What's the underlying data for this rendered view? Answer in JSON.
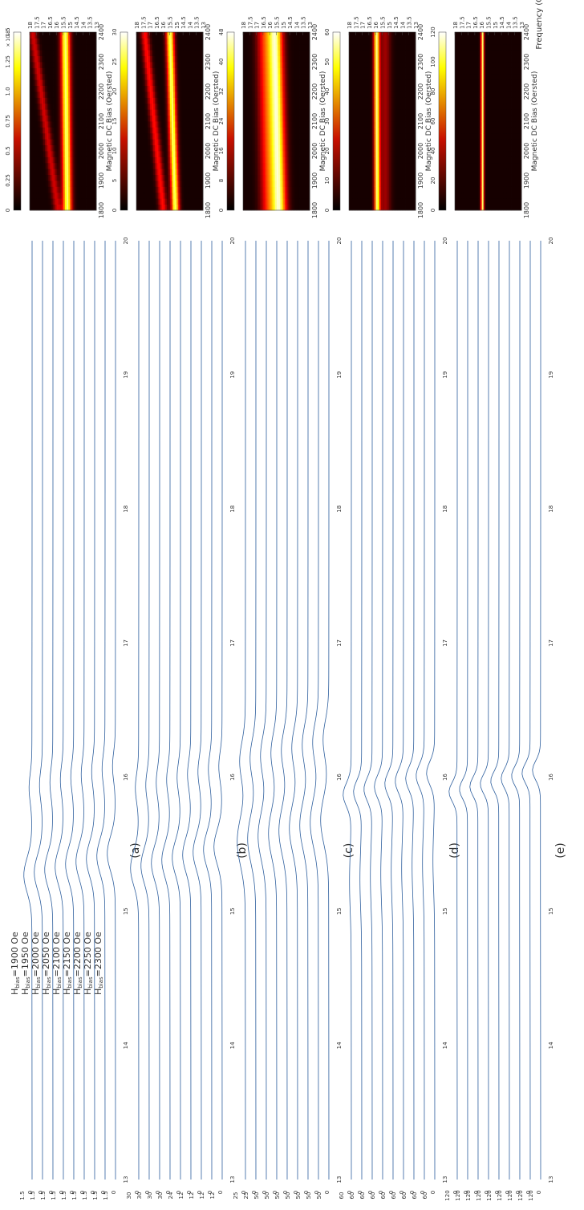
{
  "figure": {
    "frequency_label": "Frequency (GHz)",
    "bias_axis_label": "Magnetic DC Bias (Oersted)",
    "exponent_label": "× 10",
    "exponent_power": "-8"
  },
  "colors": {
    "trace": "#2e5f9e",
    "axis": "#444444",
    "heat_low": "#000000",
    "heat_mid": "#c81000",
    "heat_high": "#ffff00",
    "heat_top": "#ffffff"
  },
  "chart_data": [
    {
      "panel": "(a)",
      "type": "heatmap",
      "x_label": "Magnetic DC Bias (Oersted)",
      "x_ticks": [
        "1800",
        "1900",
        "2000",
        "2100",
        "2200",
        "2300",
        "2400"
      ],
      "y_label": "",
      "y_ticks": [
        "13",
        "13.5",
        "14",
        "14.5",
        "15",
        "15.5",
        "16",
        "16.5",
        "17",
        "17.5",
        "18"
      ],
      "x_range": [
        1800,
        2400
      ],
      "y_range": [
        13,
        18
      ],
      "colorbar_ticks": [
        "1.5",
        "1.25",
        "1.0",
        "0.75",
        "0.5",
        "0.25",
        "0"
      ],
      "colorbar_exponent": "-8",
      "bands": [
        {
          "f_start": 15.2,
          "f_end": 15.35,
          "strength": 1.0,
          "width": 0.35
        },
        {
          "f_start": 15.9,
          "f_end": 17.8,
          "strength": 0.35,
          "width": 0.3
        }
      ]
    },
    {
      "panel": "(b)",
      "type": "heatmap",
      "x_label": "Magnetic DC Bias (Oersted)",
      "x_ticks": [
        "1800",
        "1900",
        "2000",
        "2100",
        "2200",
        "2300",
        "2400"
      ],
      "y_ticks": [
        "13",
        "13.5",
        "14",
        "14.5",
        "15",
        "15.5",
        "16",
        "16.5",
        "17",
        "17.5",
        "18"
      ],
      "x_range": [
        1800,
        2400
      ],
      "y_range": [
        13,
        18
      ],
      "colorbar_ticks": [
        "30",
        "25",
        "20",
        "15",
        "10",
        "5",
        "0"
      ],
      "bands": [
        {
          "f_start": 15.1,
          "f_end": 15.5,
          "strength": 1.0,
          "width": 0.3
        },
        {
          "f_start": 16.0,
          "f_end": 17.4,
          "strength": 0.45,
          "width": 0.3
        }
      ]
    },
    {
      "panel": "(c)",
      "type": "heatmap",
      "x_label": "Magnetic DC Bias (Oersted)",
      "x_ticks": [
        "1800",
        "1900",
        "2000",
        "2100",
        "2200",
        "2300",
        "2400"
      ],
      "y_ticks": [
        "13",
        "13.5",
        "14",
        "14.5",
        "15",
        "15.5",
        "16",
        "16.5",
        "17",
        "17.5",
        "18"
      ],
      "x_range": [
        1800,
        2400
      ],
      "y_range": [
        13,
        18
      ],
      "colorbar_ticks": [
        "48",
        "40",
        "32",
        "24",
        "16",
        "8",
        "0"
      ],
      "bands": [
        {
          "f_start": 15.3,
          "f_end": 15.6,
          "strength": 1.0,
          "width": 0.55
        },
        {
          "f_start": 16.1,
          "f_end": 16.4,
          "strength": 0.5,
          "width": 0.6
        }
      ]
    },
    {
      "panel": "(d)",
      "type": "heatmap",
      "x_label": "Magnetic DC Bias (Oersted)",
      "x_ticks": [
        "1800",
        "1900",
        "2000",
        "2100",
        "2200",
        "2300",
        "2400"
      ],
      "y_ticks": [
        "13",
        "13.5",
        "14",
        "14.5",
        "15",
        "15.5",
        "16",
        "16.5",
        "17",
        "17.5",
        "18"
      ],
      "x_range": [
        1800,
        2400
      ],
      "y_range": [
        13,
        18
      ],
      "colorbar_ticks": [
        "60",
        "50",
        "40",
        "30",
        "20",
        "10",
        "0"
      ],
      "bands": [
        {
          "f_start": 15.9,
          "f_end": 15.95,
          "strength": 1.0,
          "width": 0.22
        },
        {
          "f_start": 15.3,
          "f_end": 15.3,
          "strength": 0.25,
          "width": 0.4
        }
      ]
    },
    {
      "panel": "(e)",
      "type": "heatmap",
      "x_label": "Magnetic DC Bias (Oersted)",
      "x_ticks": [
        "1800",
        "1900",
        "2000",
        "2100",
        "2200",
        "2300",
        "2400"
      ],
      "y_ticks": [
        "13",
        "13.5",
        "14",
        "14.5",
        "15",
        "15.5",
        "16",
        "16.5",
        "17",
        "17.5",
        "18"
      ],
      "x_range": [
        1800,
        2400
      ],
      "y_range": [
        13,
        18
      ],
      "colorbar_ticks": [
        "120",
        "100",
        "80",
        "60",
        "40",
        "20",
        "0"
      ],
      "bands": [
        {
          "f_start": 15.95,
          "f_end": 15.95,
          "strength": 1.0,
          "width": 0.12
        }
      ]
    }
  ],
  "spectra": {
    "type": "line",
    "x_range": [
      13,
      20
    ],
    "x_ticks": [
      "13",
      "14",
      "15",
      "16",
      "17",
      "18",
      "19",
      "20"
    ],
    "bias_labels": [
      {
        "base": "H",
        "sub": "bias",
        "text": "=1900 Oe"
      },
      {
        "base": "H",
        "sub": "bias",
        "text": "=1950 Oe"
      },
      {
        "base": "H",
        "sub": "bias",
        "text": "=2000 Oe"
      },
      {
        "base": "H",
        "sub": "bias",
        "text": "=2050 Oe"
      },
      {
        "base": "H",
        "sub": "bias",
        "text": "=2100 Oe"
      },
      {
        "base": "H",
        "sub": "bias",
        "text": "=2150 Oe"
      },
      {
        "base": "H",
        "sub": "bias",
        "text": "=2200 Oe"
      },
      {
        "base": "H",
        "sub": "bias",
        "text": "=2250 Oe"
      },
      {
        "base": "H",
        "sub": "bias",
        "text": "=2300 Oe"
      }
    ],
    "columns": [
      {
        "panel": "(a)",
        "ymax": [
          "1.5",
          "1.5",
          "1.5",
          "1.5",
          "1.5",
          "1.5",
          "1.5",
          "1.5",
          "1.5"
        ],
        "peaks": [
          [
            15.35,
            1.0,
            0.18
          ],
          [
            16.0,
            0.35,
            0.15
          ]
        ]
      },
      {
        "panel": "(b)",
        "ymax": [
          "30",
          "30",
          "30",
          "30",
          "24",
          "12",
          "12",
          "12",
          "12"
        ],
        "peaks": [
          [
            15.4,
            1.0,
            0.18
          ],
          [
            16.0,
            0.4,
            0.15
          ]
        ]
      },
      {
        "panel": "(c)",
        "ymax": [
          "25",
          "25",
          "50",
          "50",
          "50",
          "50",
          "50",
          "50",
          "50"
        ],
        "peaks": [
          [
            15.6,
            1.0,
            0.25
          ],
          [
            16.2,
            0.7,
            0.2
          ]
        ]
      },
      {
        "panel": "(d)",
        "ymax": [
          "60",
          "60",
          "60",
          "60",
          "60",
          "60",
          "60",
          "60",
          "60"
        ],
        "peaks": [
          [
            15.95,
            1.0,
            0.12
          ],
          [
            15.3,
            0.2,
            0.3
          ]
        ]
      },
      {
        "panel": "(e)",
        "ymax": [
          "120",
          "120",
          "120",
          "120",
          "120",
          "120",
          "120",
          "120",
          "120"
        ],
        "peaks": [
          [
            15.97,
            1.0,
            0.1
          ]
        ]
      }
    ]
  }
}
